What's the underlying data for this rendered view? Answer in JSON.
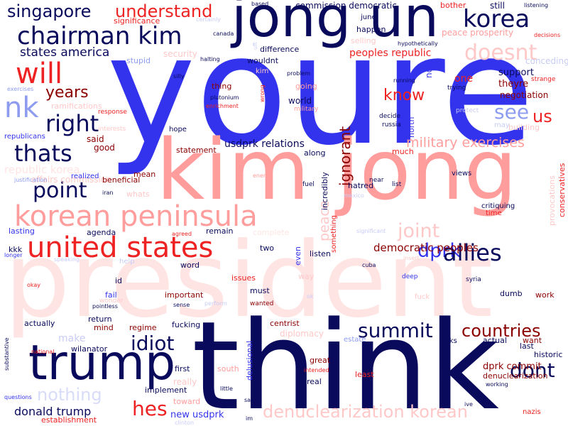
{
  "palette": {
    "navy": "#0a0a5c",
    "blue": "#3333ee",
    "pink": "#ff9d9d",
    "lightpink": "#ffe4e4",
    "red": "#ee2222",
    "darkred": "#8b0000",
    "periwinkle": "#8e9cf0",
    "lightblue": "#c8ccf5"
  },
  "words": [
    {
      "text": "youre",
      "color": "#3333ee",
      "orient": "h"
    },
    {
      "text": "kim jong",
      "color": "#ff9d9d",
      "orient": "h"
    },
    {
      "text": "president",
      "color": "#ffe4e4",
      "orient": "h"
    },
    {
      "text": "think",
      "color": "#0a0a5c",
      "orient": "h"
    },
    {
      "text": "jong un",
      "color": "#0a0a5c",
      "orient": "h"
    },
    {
      "text": "trump",
      "color": "#0a0a5c",
      "orient": "h"
    },
    {
      "text": "korean peninsula",
      "color": "#ff9d9d",
      "orient": "h"
    },
    {
      "text": "united states",
      "color": "#ee2222",
      "orient": "h"
    },
    {
      "text": "chairman kim",
      "color": "#0a0a5c",
      "orient": "h"
    },
    {
      "text": "will",
      "color": "#ee2222",
      "orient": "h"
    },
    {
      "text": "nk",
      "color": "#8e9cf0",
      "orient": "h"
    },
    {
      "text": "right",
      "color": "#0a0a5c",
      "orient": "h"
    },
    {
      "text": "thats",
      "color": "#0a0a5c",
      "orient": "h"
    },
    {
      "text": "point",
      "color": "#0a0a5c",
      "orient": "h"
    },
    {
      "text": "korea",
      "color": "#0a0a5c",
      "orient": "h"
    },
    {
      "text": "singapore",
      "color": "#0a0a5c",
      "orient": "h"
    },
    {
      "text": "understand",
      "color": "#ee2222",
      "orient": "h"
    },
    {
      "text": "years",
      "color": "#8b0000",
      "orient": "h"
    },
    {
      "text": "states america",
      "color": "#0a0a5c",
      "orient": "h"
    },
    {
      "text": "doesnt",
      "color": "#ffc8c8",
      "orient": "h"
    },
    {
      "text": "know",
      "color": "#ee2222",
      "orient": "h"
    },
    {
      "text": "see",
      "color": "#8e9cf0",
      "orient": "h"
    },
    {
      "text": "us",
      "color": "#ee2222",
      "orient": "h"
    },
    {
      "text": "military exercises",
      "color": "#ff9d9d",
      "orient": "h"
    },
    {
      "text": "joint",
      "color": "#ffc8c8",
      "orient": "h"
    },
    {
      "text": "dprk",
      "color": "#3333ee",
      "orient": "h"
    },
    {
      "text": "allies",
      "color": "#0a0a5c",
      "orient": "h"
    },
    {
      "text": "democratic peoples",
      "color": "#8b0000",
      "orient": "h"
    },
    {
      "text": "summit",
      "color": "#0a0a5c",
      "orient": "h"
    },
    {
      "text": "countries",
      "color": "#8b0000",
      "orient": "h"
    },
    {
      "text": "idiot",
      "color": "#0a0a5c",
      "orient": "h"
    },
    {
      "text": "dont",
      "color": "#0a0a5c",
      "orient": "h"
    },
    {
      "text": "hes",
      "color": "#ee2222",
      "orient": "h"
    },
    {
      "text": "denuclearization korean",
      "color": "#ffc8c8",
      "orient": "h"
    },
    {
      "text": "nothing",
      "color": "#d8dcf8",
      "orient": "h"
    },
    {
      "text": "donald trump",
      "color": "#0a0a5c",
      "orient": "h"
    },
    {
      "text": "new usdprk",
      "color": "#3333ee",
      "orient": "h"
    },
    {
      "text": "peoples republic",
      "color": "#ee2222",
      "orient": "h"
    },
    {
      "text": "ignorant",
      "color": "#8b0000",
      "orient": "v"
    },
    {
      "text": "peace",
      "color": "#ffc8c8",
      "orient": "v"
    },
    {
      "text": "usdprk relations",
      "color": "#0a0a5c",
      "orient": "h"
    },
    {
      "text": "dprk commit",
      "color": "#8b0000",
      "orient": "h"
    },
    {
      "text": "denuclearization",
      "color": "#8b0000",
      "orient": "h"
    },
    {
      "text": "affairs commission",
      "color": "#ffc8c8",
      "orient": "h"
    },
    {
      "text": "republic korea",
      "color": "#ffe4e4",
      "orient": "h"
    },
    {
      "text": "commission democratic",
      "color": "#0a0a5c",
      "orient": "h"
    },
    {
      "text": "significance",
      "color": "#ee2222",
      "orient": "h"
    },
    {
      "text": "peace prosperity",
      "color": "#ff9d9d",
      "orient": "h"
    },
    {
      "text": "negotiation",
      "color": "#8b0000",
      "orient": "h"
    },
    {
      "text": "support",
      "color": "#0a0a5c",
      "orient": "h"
    },
    {
      "text": "theyre",
      "color": "#8b0000",
      "orient": "h"
    },
    {
      "text": "one",
      "color": "#ee2222",
      "orient": "h"
    },
    {
      "text": "conceding",
      "color": "#c8ccf5",
      "orient": "h"
    },
    {
      "text": "still",
      "color": "#0a0a5c",
      "orient": "h"
    },
    {
      "text": "bother",
      "color": "#ee2222",
      "orient": "h"
    },
    {
      "text": "june",
      "color": "#0a0a5c",
      "orient": "h"
    },
    {
      "text": "happen",
      "color": "#0a0a5c",
      "orient": "h"
    },
    {
      "text": "selling",
      "color": "#ffc8c8",
      "orient": "h"
    },
    {
      "text": "difference",
      "color": "#0a0a5c",
      "orient": "h"
    },
    {
      "text": "wouldnt",
      "color": "#0a0a5c",
      "orient": "h"
    },
    {
      "text": "security",
      "color": "#ffc8c8",
      "orient": "h"
    },
    {
      "text": "stupid",
      "color": "#8e9cf0",
      "orient": "h"
    },
    {
      "text": "thing",
      "color": "#8b0000",
      "orient": "h"
    },
    {
      "text": "going",
      "color": "#ff9d9d",
      "orient": "h"
    },
    {
      "text": "world",
      "color": "#0a0a5c",
      "orient": "h"
    },
    {
      "text": "now",
      "color": "#3333ee",
      "orient": "v"
    },
    {
      "text": "north",
      "color": "#3333ee",
      "orient": "v"
    },
    {
      "text": "much",
      "color": "#ee2222",
      "orient": "h"
    },
    {
      "text": "along",
      "color": "#0a0a5c",
      "orient": "h"
    },
    {
      "text": "said",
      "color": "#8b0000",
      "orient": "h"
    },
    {
      "text": "good",
      "color": "#8b0000",
      "orient": "h"
    },
    {
      "text": "hope",
      "color": "#0a0a5c",
      "orient": "h"
    },
    {
      "text": "statement",
      "color": "#8b0000",
      "orient": "h"
    },
    {
      "text": "beneficial",
      "color": "#8b0000",
      "orient": "h"
    },
    {
      "text": "mean",
      "color": "#8b0000",
      "orient": "h"
    },
    {
      "text": "whats",
      "color": "#ffc8c8",
      "orient": "h"
    },
    {
      "text": "realized",
      "color": "#3333ee",
      "orient": "h"
    },
    {
      "text": "hatred",
      "color": "#0a0a5c",
      "orient": "h"
    },
    {
      "text": "incredibly",
      "color": "#0a0a5c",
      "orient": "v"
    },
    {
      "text": "something",
      "color": "#ee2222",
      "orient": "v"
    },
    {
      "text": "remain",
      "color": "#0a0a5c",
      "orient": "h"
    },
    {
      "text": "agenda",
      "color": "#0a0a5c",
      "orient": "h"
    },
    {
      "text": "lasting",
      "color": "#3333ee",
      "orient": "h"
    },
    {
      "text": "kkk",
      "color": "#0a0a5c",
      "orient": "h"
    },
    {
      "text": "two",
      "color": "#0a0a5c",
      "orient": "h"
    },
    {
      "text": "even",
      "color": "#3333ee",
      "orient": "v"
    },
    {
      "text": "listen",
      "color": "#0a0a5c",
      "orient": "h"
    },
    {
      "text": "word",
      "color": "#0a0a5c",
      "orient": "h"
    },
    {
      "text": "issues",
      "color": "#ee2222",
      "orient": "h"
    },
    {
      "text": "way",
      "color": "#ffc8c8",
      "orient": "h"
    },
    {
      "text": "id",
      "color": "#0a0a5c",
      "orient": "h"
    },
    {
      "text": "must",
      "color": "#0a0a5c",
      "orient": "h"
    },
    {
      "text": "important",
      "color": "#8b0000",
      "orient": "h"
    },
    {
      "text": "fail",
      "color": "#3333ee",
      "orient": "h"
    },
    {
      "text": "wanted",
      "color": "#8b0000",
      "orient": "h"
    },
    {
      "text": "work",
      "color": "#8b0000",
      "orient": "h"
    },
    {
      "text": "dumb",
      "color": "#0a0a5c",
      "orient": "h"
    },
    {
      "text": "last",
      "color": "#0a0a5c",
      "orient": "h"
    },
    {
      "text": "want",
      "color": "#8b0000",
      "orient": "h"
    },
    {
      "text": "historic",
      "color": "#0a0a5c",
      "orient": "h"
    },
    {
      "text": "actually",
      "color": "#0a0a5c",
      "orient": "h"
    },
    {
      "text": "return",
      "color": "#0a0a5c",
      "orient": "h"
    },
    {
      "text": "mind",
      "color": "#8b0000",
      "orient": "h"
    },
    {
      "text": "regime",
      "color": "#8b0000",
      "orient": "h"
    },
    {
      "text": "fucking",
      "color": "#0a0a5c",
      "orient": "h"
    },
    {
      "text": "wilanator",
      "color": "#0a0a5c",
      "orient": "h"
    },
    {
      "text": "first",
      "color": "#0a0a5c",
      "orient": "h"
    },
    {
      "text": "south",
      "color": "#ff9d9d",
      "orient": "h"
    },
    {
      "text": "delusional",
      "color": "#3333ee",
      "orient": "v"
    },
    {
      "text": "great",
      "color": "#8b0000",
      "orient": "h"
    },
    {
      "text": "real",
      "color": "#0a0a5c",
      "orient": "h"
    },
    {
      "text": "least",
      "color": "#ee2222",
      "orient": "h"
    },
    {
      "text": "implement",
      "color": "#0a0a5c",
      "orient": "h"
    },
    {
      "text": "toward",
      "color": "#ff9d9d",
      "orient": "h"
    },
    {
      "text": "establishment",
      "color": "#ee2222",
      "orient": "h"
    },
    {
      "text": "centrist",
      "color": "#8b0000",
      "orient": "h"
    },
    {
      "text": "talks",
      "color": "#0a0a5c",
      "orient": "h"
    },
    {
      "text": "actual",
      "color": "#0a0a5c",
      "orient": "h"
    },
    {
      "text": "diplomacy",
      "color": "#ffc8c8",
      "orient": "h"
    },
    {
      "text": "estate",
      "color": "#8e9cf0",
      "orient": "h"
    },
    {
      "text": "conservatives",
      "color": "#ee2222",
      "orient": "v"
    },
    {
      "text": "provocations",
      "color": "#ffc8c8",
      "orient": "v"
    },
    {
      "text": "views",
      "color": "#0a0a5c",
      "orient": "h"
    },
    {
      "text": "critiquing",
      "color": "#0a0a5c",
      "orient": "h"
    },
    {
      "text": "time",
      "color": "#ee2222",
      "orient": "h"
    },
    {
      "text": "building",
      "color": "#ffc8c8",
      "orient": "h"
    },
    {
      "text": "may",
      "color": "#c8ccf5",
      "orient": "h"
    },
    {
      "text": "protect",
      "color": "#c8ccf5",
      "orient": "h"
    },
    {
      "text": "decide",
      "color": "#0a0a5c",
      "orient": "h"
    },
    {
      "text": "russia",
      "color": "#0a0a5c",
      "orient": "h"
    },
    {
      "text": "trying",
      "color": "#0a0a5c",
      "orient": "h"
    },
    {
      "text": "strange",
      "color": "#ee2222",
      "orient": "h"
    },
    {
      "text": "listening",
      "color": "#0a0a5c",
      "orient": "h"
    },
    {
      "text": "decisions",
      "color": "#ee2222",
      "orient": "h"
    },
    {
      "text": "hypothetically",
      "color": "#0a0a5c",
      "orient": "h"
    },
    {
      "text": "canada",
      "color": "#0a0a5c",
      "orient": "h"
    },
    {
      "text": "halting",
      "color": "#0a0a5c",
      "orient": "h"
    },
    {
      "text": "silly",
      "color": "#0a0a5c",
      "orient": "h"
    },
    {
      "text": "plutonium",
      "color": "#0a0a5c",
      "orient": "h"
    },
    {
      "text": "enrichment",
      "color": "#ee2222",
      "orient": "h"
    },
    {
      "text": "problem",
      "color": "#0a0a5c",
      "orient": "h"
    },
    {
      "text": "running",
      "color": "#0a0a5c",
      "orient": "h"
    },
    {
      "text": "military",
      "color": "#ff9d9d",
      "orient": "h"
    },
    {
      "text": "republicans",
      "color": "#3333ee",
      "orient": "h"
    },
    {
      "text": "interests",
      "color": "#ffc8c8",
      "orient": "h"
    },
    {
      "text": "ramifications",
      "color": "#ffc8c8",
      "orient": "h"
    },
    {
      "text": "response",
      "color": "#ee2222",
      "orient": "h"
    },
    {
      "text": "exercises",
      "color": "#8e9cf0",
      "orient": "h"
    },
    {
      "text": "justification",
      "color": "#8e9cf0",
      "orient": "h"
    },
    {
      "text": "iran",
      "color": "#0a0a5c",
      "orient": "h"
    },
    {
      "text": "enemy",
      "color": "#ff9d9d",
      "orient": "h"
    },
    {
      "text": "fuel",
      "color": "#0a0a5c",
      "orient": "h"
    },
    {
      "text": "near",
      "color": "#0a0a5c",
      "orient": "h"
    },
    {
      "text": "list",
      "color": "#0a0a5c",
      "orient": "h"
    },
    {
      "text": "mexico",
      "color": "#c8ccf5",
      "orient": "h"
    },
    {
      "text": "significant",
      "color": "#c8ccf5",
      "orient": "h"
    },
    {
      "text": "cuba",
      "color": "#0a0a5c",
      "orient": "h"
    },
    {
      "text": "insert",
      "color": "#ffc8c8",
      "orient": "h"
    },
    {
      "text": "deep",
      "color": "#3333ee",
      "orient": "h"
    },
    {
      "text": "syria",
      "color": "#0a0a5c",
      "orient": "h"
    },
    {
      "text": "fuck",
      "color": "#ffc8c8",
      "orient": "h"
    },
    {
      "text": "ok",
      "color": "#c8ccf5",
      "orient": "h"
    },
    {
      "text": "perform",
      "color": "#c8ccf5",
      "orient": "h"
    },
    {
      "text": "sense",
      "color": "#0a0a5c",
      "orient": "h"
    },
    {
      "text": "pointless",
      "color": "#0a0a5c",
      "orient": "h"
    },
    {
      "text": "wonder",
      "color": "#ffc8c8",
      "orient": "h"
    },
    {
      "text": "help",
      "color": "#c8ccf5",
      "orient": "h"
    },
    {
      "text": "agreed",
      "color": "#ee2222",
      "orient": "h"
    },
    {
      "text": "complete",
      "color": "#ffe4e4",
      "orient": "h"
    },
    {
      "text": "okay",
      "color": "#ee2222",
      "orient": "h"
    },
    {
      "text": "speaking",
      "color": "#c8ccf5",
      "orient": "h"
    },
    {
      "text": "longer",
      "color": "#3333ee",
      "orient": "h"
    },
    {
      "text": "national",
      "color": "#ee2222",
      "orient": "h"
    },
    {
      "text": "substantive",
      "color": "#0a0a5c",
      "orient": "v"
    },
    {
      "text": "questions",
      "color": "#3333ee",
      "orient": "h"
    },
    {
      "text": "clinton",
      "color": "#c8ccf5",
      "orient": "h"
    },
    {
      "text": "intended",
      "color": "#ee2222",
      "orient": "h"
    },
    {
      "text": "nazis",
      "color": "#ee2222",
      "orient": "h"
    },
    {
      "text": "working",
      "color": "#0a0a5c",
      "orient": "h"
    },
    {
      "text": "ive",
      "color": "#0a0a5c",
      "orient": "h"
    },
    {
      "text": "say",
      "color": "#0a0a5c",
      "orient": "h"
    },
    {
      "text": "im",
      "color": "#0a0a5c",
      "orient": "h"
    },
    {
      "text": "little",
      "color": "#0a0a5c",
      "orient": "h"
    },
    {
      "text": "really",
      "color": "#ffc8c8",
      "orient": "h"
    },
    {
      "text": "make",
      "color": "#c8ccf5",
      "orient": "h"
    },
    {
      "text": "based",
      "color": "#0a0a5c",
      "orient": "h"
    },
    {
      "text": "certainly",
      "color": "#c8ccf5",
      "orient": "h"
    },
    {
      "text": "uft",
      "color": "#c8ccf5",
      "orient": "v"
    },
    {
      "text": "wrong",
      "color": "#ee2222",
      "orient": "v"
    },
    {
      "text": "kim",
      "color": "#ffc8c8",
      "orient": "h"
    }
  ]
}
